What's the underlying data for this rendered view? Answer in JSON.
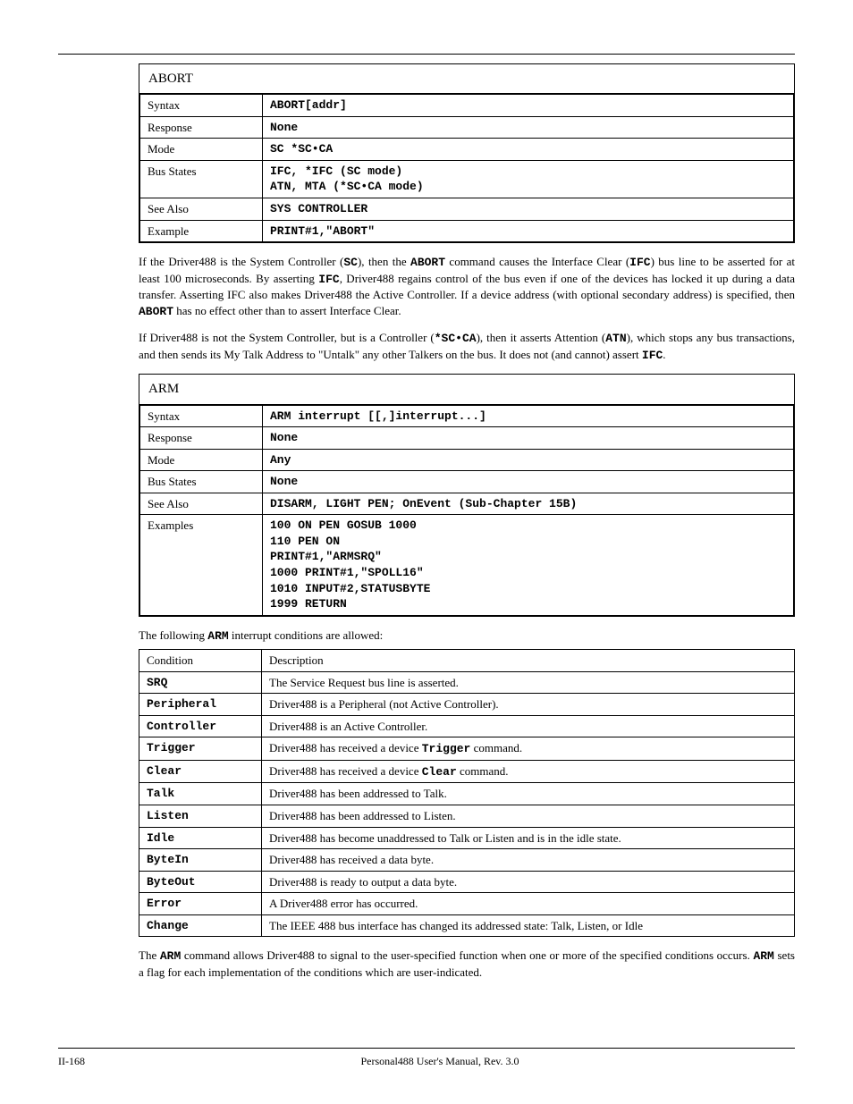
{
  "abort": {
    "title": "ABORT",
    "rows": {
      "syntax_k": "Syntax",
      "syntax_v": "ABORT[addr]",
      "resp_k": "Response",
      "resp_v": "None",
      "mode_k": "Mode",
      "mode_v": "SC   *SC•CA",
      "bus_k": "Bus States",
      "bus_v": "IFC, *IFC (SC mode)\nATN, MTA (*SC•CA mode)",
      "see_k": "See Also",
      "see_v": "SYS CONTROLLER",
      "ex_k": "Example",
      "ex_v": "PRINT#1,\"ABORT\""
    },
    "p1_a": "If the Driver488 is the System Controller (",
    "p1_b": "SC",
    "p1_c": "), then the ",
    "p1_d": "ABORT",
    "p1_e": " command causes the Interface Clear (",
    "p1_f": "IFC",
    "p1_g": ") bus line to be asserted for at least 100 microseconds. By asserting ",
    "p1_h": "IFC",
    "p1_i": ", Driver488 regains control of the bus even if one of the devices has locked it up during a data transfer. Asserting IFC also makes Driver488 the Active Controller. If a device address (with optional secondary address) is specified, then ",
    "p1_j": "ABORT",
    "p1_k": " has no effect other than to assert Interface Clear.",
    "p2_a": "If Driver488 is not the System Controller, but is a Controller (",
    "p2_b": "*SC•CA",
    "p2_c": "), then it asserts Attention (",
    "p2_d": "ATN",
    "p2_e": "), which stops any bus transactions, and then sends its My Talk Address to \"Untalk\" any other Talkers on the bus. It does not (and cannot) assert ",
    "p2_f": "IFC",
    "p2_g": "."
  },
  "arm": {
    "title": "ARM",
    "rows": {
      "syntax_k": "Syntax",
      "syntax_v": "ARM interrupt [[,]interrupt...]",
      "resp_k": "Response",
      "resp_v": "None",
      "mode_k": "Mode",
      "mode_v": "Any",
      "bus_k": "Bus States",
      "bus_v": "None",
      "see_k": "See Also",
      "see_v": "DISARM, LIGHT PEN; OnEvent (Sub-Chapter 15B)",
      "ex_k": "Examples",
      "ex_v": "100 ON PEN GOSUB 1000\n110 PEN ON\nPRINT#1,\"ARMSRQ\"\n1000 PRINT#1,\"SPOLL16\"\n1010 INPUT#2,STATUSBYTE\n1999 RETURN"
    },
    "lead_a": "The following ",
    "lead_b": "ARM",
    "lead_c": " interrupt conditions are allowed:",
    "table_h1": "Condition",
    "table_h2": "Description",
    "conds": [
      {
        "c": "SRQ",
        "d": "The Service Request bus line is asserted."
      },
      {
        "c": "Peripheral",
        "d": "Driver488 is a Peripheral (not Active Controller)."
      },
      {
        "c": "Controller",
        "d": "Driver488 is an Active Controller."
      },
      {
        "c": "Trigger",
        "d_a": "Driver488 has received a device ",
        "d_b": "Trigger",
        "d_c": " command."
      },
      {
        "c": "Clear",
        "d_a": "Driver488 has received a device ",
        "d_b": "Clear",
        "d_c": " command."
      },
      {
        "c": "Talk",
        "d": "Driver488 has been addressed to Talk."
      },
      {
        "c": "Listen",
        "d": "Driver488 has been addressed to Listen."
      },
      {
        "c": "Idle",
        "d": "Driver488 has become unaddressed to Talk or Listen and is in the idle state."
      },
      {
        "c": "ByteIn",
        "d": "Driver488 has received a data byte."
      },
      {
        "c": "ByteOut",
        "d": "Driver488 is ready to output a data byte."
      },
      {
        "c": "Error",
        "d": "A Driver488 error has occurred."
      },
      {
        "c": "Change",
        "d": "The IEEE 488 bus interface has changed its addressed state: Talk, Listen, or Idle"
      }
    ],
    "tail_a": "The ",
    "tail_b": "ARM",
    "tail_c": " command allows Driver488 to signal to the user-specified function when one or more of the specified conditions occurs. ",
    "tail_d": "ARM",
    "tail_e": " sets a flag for each implementation of the conditions which are user-indicated."
  },
  "footer": {
    "left": "II-168",
    "center": "Personal488 User's Manual, Rev. 3.0",
    "right": ""
  }
}
